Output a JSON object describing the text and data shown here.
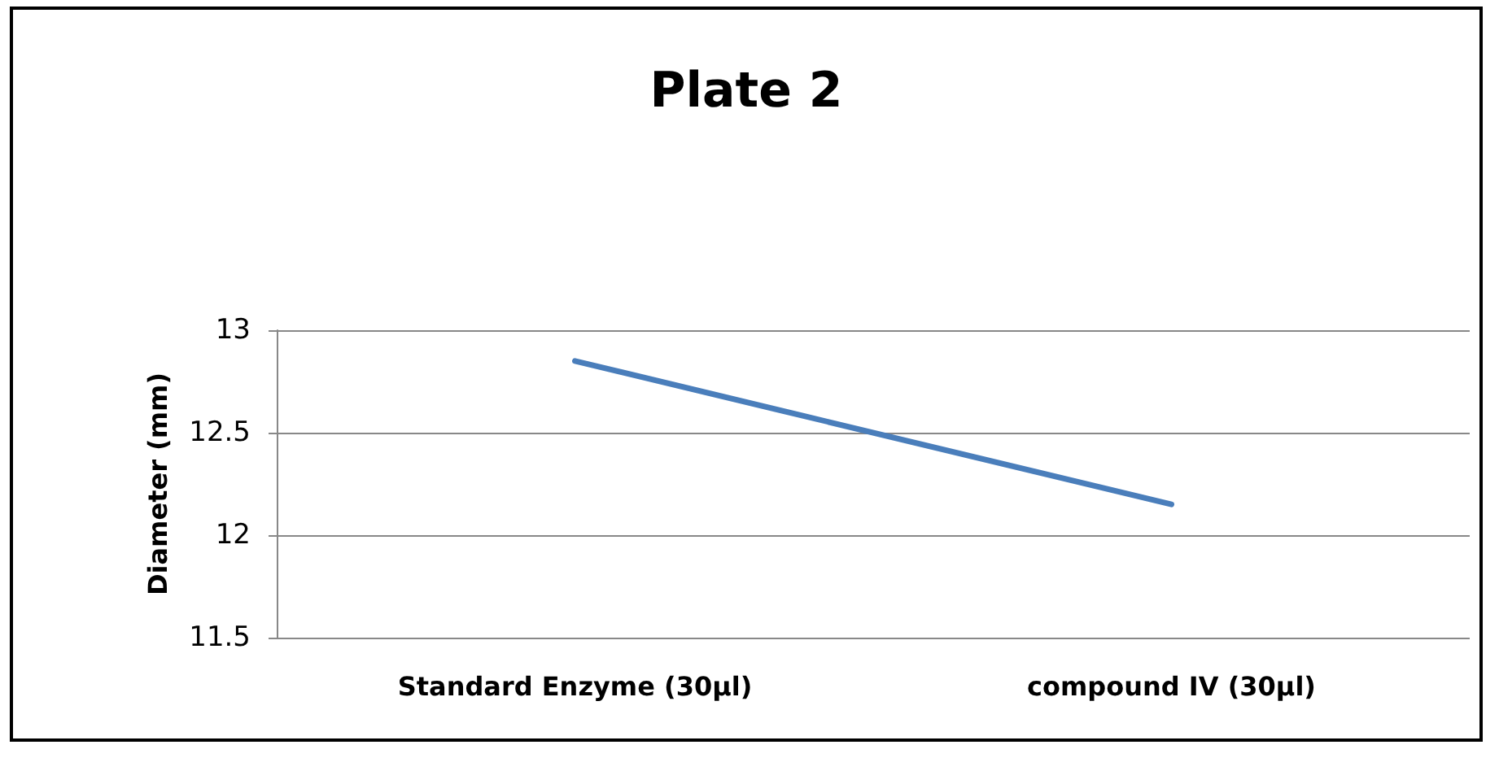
{
  "chart_data": {
    "type": "line",
    "title": "Plate 2",
    "ylabel": "Diameter (mm)",
    "categories": [
      "Standard Enzyme (30µl)",
      "compound IV (30µl)"
    ],
    "series": [
      {
        "color": "#4a7ebb",
        "values": [
          12.85,
          12.15
        ]
      }
    ],
    "ylim": [
      11.5,
      13
    ],
    "yticks": [
      11.5,
      12,
      12.5,
      13
    ],
    "grid": "y",
    "marker": "none",
    "line_style": "solid"
  }
}
